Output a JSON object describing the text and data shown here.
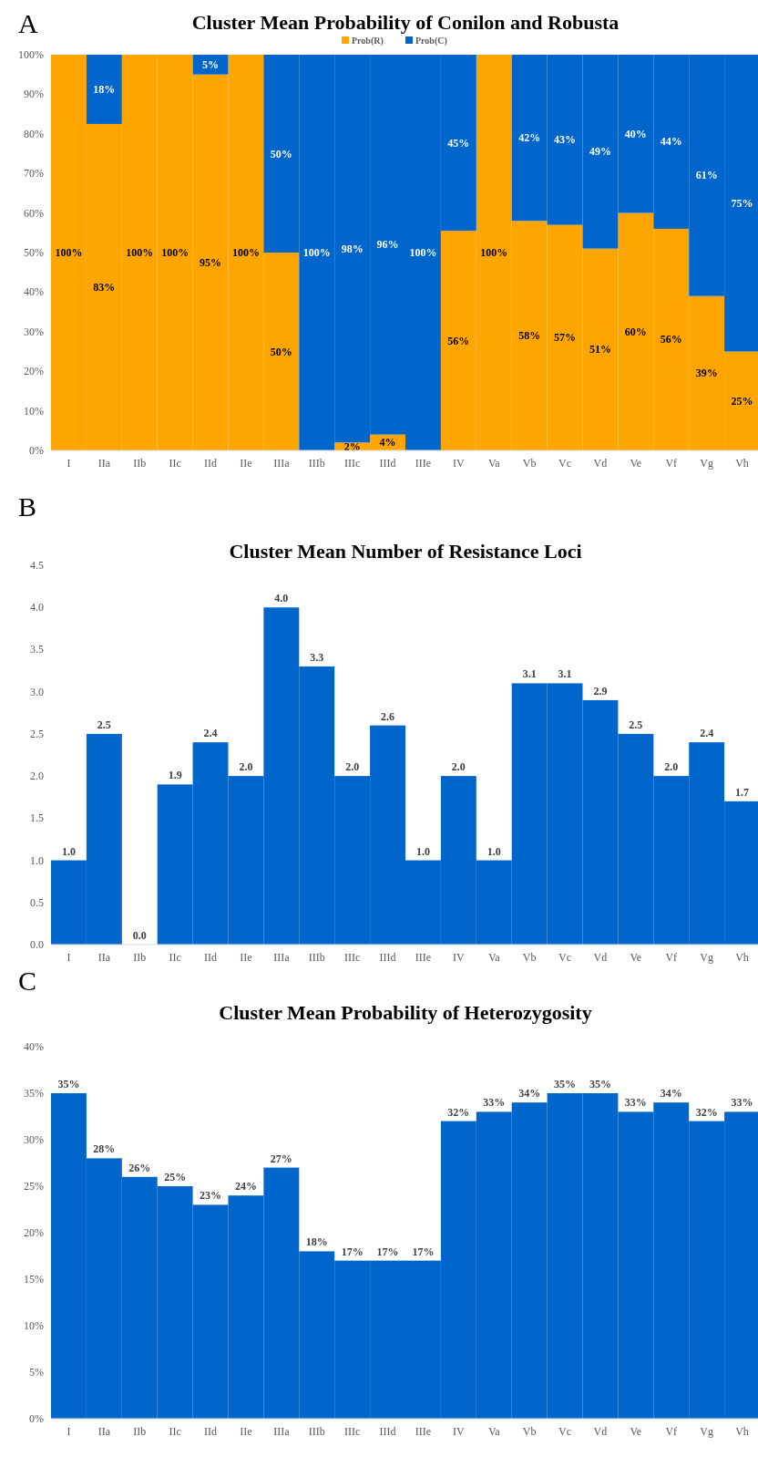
{
  "chart_data": [
    {
      "type": "bar",
      "title": "Cluster Mean Probability of Conilon and Robusta",
      "annotations": [
        "A"
      ],
      "stacked": true,
      "legend": "top",
      "categories": [
        "I",
        "IIa",
        "IIb",
        "IIc",
        "IId",
        "IIe",
        "IIIa",
        "IIIb",
        "IIIc",
        "IIId",
        "IIIe",
        "IV",
        "Va",
        "Vb",
        "Vc",
        "Vd",
        "Ve",
        "Vf",
        "Vg",
        "Vh"
      ],
      "series": [
        {
          "name": "Prob(R)",
          "color": "#ffa500",
          "values": [
            100,
            82.5,
            100,
            100,
            95,
            100,
            50,
            0,
            2,
            4,
            0,
            55.5,
            100,
            58,
            57,
            51,
            60,
            56,
            39,
            25
          ],
          "value_labels": [
            "100%",
            "83%",
            "100%",
            "100%",
            "95%",
            "100%",
            "50%",
            null,
            "2%",
            "4%",
            null,
            "56%",
            "100%",
            "58%",
            "57%",
            "51%",
            "60%",
            "56%",
            "39%",
            "25%"
          ]
        },
        {
          "name": "Prob(C)",
          "color": "#0066cc",
          "values": [
            0,
            17.5,
            0,
            0,
            5,
            0,
            50,
            100,
            98,
            96,
            100,
            44.5,
            0,
            42,
            43,
            49,
            40,
            44,
            61,
            75
          ],
          "value_labels": [
            null,
            "18%",
            null,
            null,
            "5%",
            null,
            "50%",
            "100%",
            "98%",
            "96%",
            "100%",
            "45%",
            null,
            "42%",
            "43%",
            "49%",
            "40%",
            "44%",
            "61%",
            "75%"
          ]
        }
      ],
      "ylim": [
        0,
        100
      ],
      "yticks": [
        {
          "value": 0,
          "label": "0%"
        },
        {
          "value": 10,
          "label": "10%"
        },
        {
          "value": 20,
          "label": "20%"
        },
        {
          "value": 30,
          "label": "30%"
        },
        {
          "value": 40,
          "label": "40%"
        },
        {
          "value": 50,
          "label": "50%"
        },
        {
          "value": 60,
          "label": "60%"
        },
        {
          "value": 70,
          "label": "70%"
        },
        {
          "value": 80,
          "label": "80%"
        },
        {
          "value": 90,
          "label": "90%"
        },
        {
          "value": 100,
          "label": "100%"
        }
      ]
    },
    {
      "type": "bar",
      "title": "Cluster Mean Number of Resistance Loci",
      "annotations": [
        "B"
      ],
      "categories": [
        "I",
        "IIa",
        "IIb",
        "IIc",
        "IId",
        "IIe",
        "IIIa",
        "IIIb",
        "IIIc",
        "IIId",
        "IIIe",
        "IV",
        "Va",
        "Vb",
        "Vc",
        "Vd",
        "Ve",
        "Vf",
        "Vg",
        "Vh"
      ],
      "series": [
        {
          "color": "#0066cc",
          "values": [
            1.0,
            2.5,
            0.0,
            1.9,
            2.4,
            2.0,
            4.0,
            3.3,
            2.0,
            2.6,
            1.0,
            2.0,
            1.0,
            3.1,
            3.1,
            2.9,
            2.5,
            2.0,
            2.4,
            1.7
          ],
          "value_labels": [
            "1.0",
            "2.5",
            "0.0",
            "1.9",
            "2.4",
            "2.0",
            "4.0",
            "3.3",
            "2.0",
            "2.6",
            "1.0",
            "2.0",
            "1.0",
            "3.1",
            "3.1",
            "2.9",
            "2.5",
            "2.0",
            "2.4",
            "1.7"
          ]
        }
      ],
      "ylim": [
        0,
        4.5
      ],
      "yticks": [
        {
          "value": 0,
          "label": "0.0"
        },
        {
          "value": 0.5,
          "label": "0.5"
        },
        {
          "value": 1,
          "label": "1.0"
        },
        {
          "value": 1.5,
          "label": "1.5"
        },
        {
          "value": 2,
          "label": "2.0"
        },
        {
          "value": 2.5,
          "label": "2.5"
        },
        {
          "value": 3,
          "label": "3.0"
        },
        {
          "value": 3.5,
          "label": "3.5"
        },
        {
          "value": 4,
          "label": "4.0"
        },
        {
          "value": 4.5,
          "label": "4.5"
        }
      ]
    },
    {
      "type": "bar",
      "title": "Cluster Mean Probability of Heterozygosity",
      "annotations": [
        "C"
      ],
      "categories": [
        "I",
        "IIa",
        "IIb",
        "IIc",
        "IId",
        "IIe",
        "IIIa",
        "IIIb",
        "IIIc",
        "IIId",
        "IIIe",
        "IV",
        "Va",
        "Vb",
        "Vc",
        "Vd",
        "Ve",
        "Vf",
        "Vg",
        "Vh"
      ],
      "series": [
        {
          "color": "#0066cc",
          "values": [
            35,
            28,
            26,
            25,
            23,
            24,
            27,
            18,
            17,
            17,
            17,
            32,
            33,
            34,
            35,
            35,
            33,
            34,
            32,
            33
          ],
          "value_labels": [
            "35%",
            "28%",
            "26%",
            "25%",
            "23%",
            "24%",
            "27%",
            "18%",
            "17%",
            "17%",
            "17%",
            "32%",
            "33%",
            "34%",
            "35%",
            "35%",
            "33%",
            "34%",
            "32%",
            "33%"
          ]
        }
      ],
      "ylim": [
        0,
        40
      ],
      "yticks": [
        {
          "value": 0,
          "label": "0%"
        },
        {
          "value": 5,
          "label": "5%"
        },
        {
          "value": 10,
          "label": "10%"
        },
        {
          "value": 15,
          "label": "15%"
        },
        {
          "value": 20,
          "label": "20%"
        },
        {
          "value": 25,
          "label": "25%"
        },
        {
          "value": 30,
          "label": "30%"
        },
        {
          "value": 35,
          "label": "35%"
        },
        {
          "value": 40,
          "label": "40%"
        }
      ]
    }
  ]
}
